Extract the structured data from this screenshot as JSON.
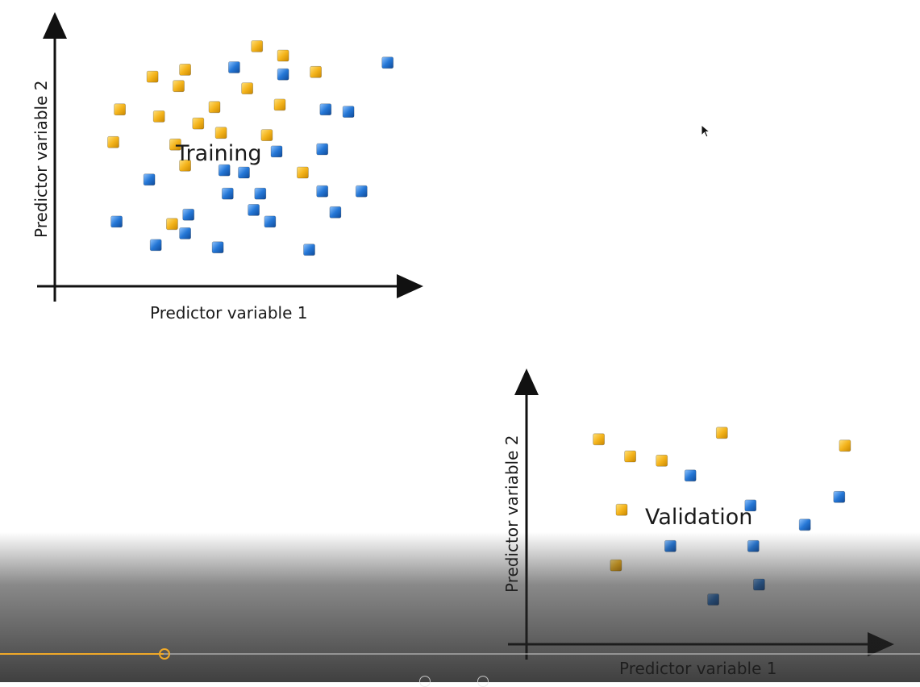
{
  "video": {
    "progress_fraction": 0.178
  },
  "colors": {
    "class_a": "#f2b21b",
    "class_b": "#1f6fc9",
    "axis": "#111111",
    "progress": "#f0a928"
  },
  "chart_data": [
    {
      "type": "scatter",
      "overlay_label": "Training",
      "xlabel": "Predictor variable 1",
      "ylabel": "Predictor variable 2",
      "xlim": [
        0,
        100
      ],
      "ylim": [
        0,
        100
      ],
      "grid": false,
      "series": [
        {
          "color": "#f2b21b",
          "points": [
            [
              54,
              94
            ],
            [
              62,
              90
            ],
            [
              22,
              81
            ],
            [
              32,
              84
            ],
            [
              30,
              77
            ],
            [
              72,
              83
            ],
            [
              51,
              76
            ],
            [
              41,
              68
            ],
            [
              61,
              69
            ],
            [
              12,
              67
            ],
            [
              24,
              64
            ],
            [
              36,
              61
            ],
            [
              43,
              57
            ],
            [
              57,
              56
            ],
            [
              10,
              53
            ],
            [
              29,
              52
            ],
            [
              32,
              43
            ],
            [
              68,
              40
            ],
            [
              28,
              18
            ]
          ]
        },
        {
          "color": "#1f6fc9",
          "points": [
            [
              47,
              85
            ],
            [
              62,
              82
            ],
            [
              94,
              87
            ],
            [
              75,
              67
            ],
            [
              82,
              66
            ],
            [
              74,
              50
            ],
            [
              60,
              49
            ],
            [
              44,
              41
            ],
            [
              50,
              40
            ],
            [
              21,
              37
            ],
            [
              74,
              32
            ],
            [
              86,
              32
            ],
            [
              45,
              31
            ],
            [
              55,
              31
            ],
            [
              53,
              24
            ],
            [
              78,
              23
            ],
            [
              33,
              22
            ],
            [
              58,
              19
            ],
            [
              11,
              19
            ],
            [
              32,
              14
            ],
            [
              23,
              9
            ],
            [
              42,
              8
            ],
            [
              70,
              7
            ]
          ]
        }
      ]
    },
    {
      "type": "scatter",
      "overlay_label": "Validation",
      "xlabel": "Predictor variable 1",
      "ylabel": "Predictor variable 2",
      "xlim": [
        0,
        100
      ],
      "ylim": [
        0,
        100
      ],
      "grid": false,
      "series": [
        {
          "color": "#f2b21b",
          "points": [
            [
              12,
              85
            ],
            [
              55,
              88
            ],
            [
              98,
              82
            ],
            [
              23,
              77
            ],
            [
              34,
              75
            ],
            [
              20,
              52
            ],
            [
              18,
              26
            ]
          ]
        },
        {
          "color": "#1f6fc9",
          "points": [
            [
              44,
              68
            ],
            [
              65,
              54
            ],
            [
              96,
              58
            ],
            [
              84,
              45
            ],
            [
              37,
              35
            ],
            [
              66,
              35
            ],
            [
              68,
              17
            ],
            [
              52,
              10
            ]
          ]
        }
      ]
    }
  ]
}
